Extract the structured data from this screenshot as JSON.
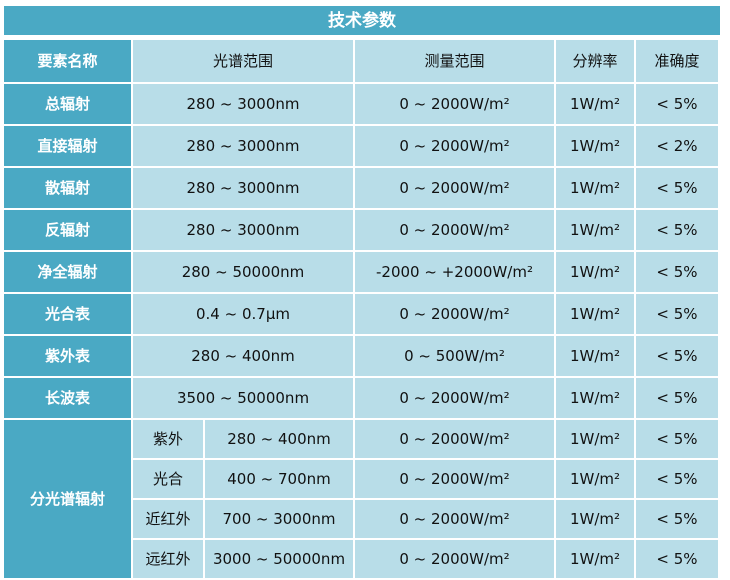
{
  "title": "技术参数",
  "headers": [
    "要素名称",
    "光谱范围",
    "测量范围",
    "分辨率",
    "准确度"
  ],
  "rows": [
    {
      "name": "总辐射",
      "spectral": "280 ~ 3000nm",
      "range": "0 ~ 2000W/m²",
      "resolution": "1W/m²",
      "accuracy": "< 5%"
    },
    {
      "name": "直接辐射",
      "spectral": "280 ~ 3000nm",
      "range": "0 ~ 2000W/m²",
      "resolution": "1W/m²",
      "accuracy": "< 2%"
    },
    {
      "name": "散辐射",
      "spectral": "280 ~ 3000nm",
      "range": "0 ~ 2000W/m²",
      "resolution": "1W/m²",
      "accuracy": "< 5%"
    },
    {
      "name": "反辐射",
      "spectral": "280 ~ 3000nm",
      "range": "0 ~ 2000W/m²",
      "resolution": "1W/m²",
      "accuracy": "< 5%"
    },
    {
      "name": "净全辐射",
      "spectral": "280 ~ 50000nm",
      "range": "-2000 ~ +2000W/m²",
      "resolution": "1W/m²",
      "accuracy": "< 5%"
    },
    {
      "name": "光合表",
      "spectral": "0.4 ~ 0.7μm",
      "range": "0 ~ 2000W/m²",
      "resolution": "1W/m²",
      "accuracy": "< 5%"
    },
    {
      "name": "紫外表",
      "spectral": "280 ~ 400nm",
      "range": "0 ~ 500W/m²",
      "resolution": "1W/m²",
      "accuracy": "< 5%"
    },
    {
      "name": "长波表",
      "spectral": "3500 ~ 50000nm",
      "range": "0 ~ 2000W/m²",
      "resolution": "1W/m²",
      "accuracy": "< 5%"
    }
  ],
  "split": {
    "name": "分光谱辐射",
    "rows": [
      {
        "band": "紫外",
        "spectral": "280 ~ 400nm",
        "range": "0 ~ 2000W/m²",
        "resolution": "1W/m²",
        "accuracy": "< 5%"
      },
      {
        "band": "光合",
        "spectral": "400 ~ 700nm",
        "range": "0 ~ 2000W/m²",
        "resolution": "1W/m²",
        "accuracy": "< 5%"
      },
      {
        "band": "近红外",
        "spectral": "700 ~ 3000nm",
        "range": "0 ~ 2000W/m²",
        "resolution": "1W/m²",
        "accuracy": "< 5%"
      },
      {
        "band": "远红外",
        "spectral": "3000 ~ 50000nm",
        "range": "0 ~ 2000W/m²",
        "resolution": "1W/m²",
        "accuracy": "< 5%"
      }
    ]
  }
}
